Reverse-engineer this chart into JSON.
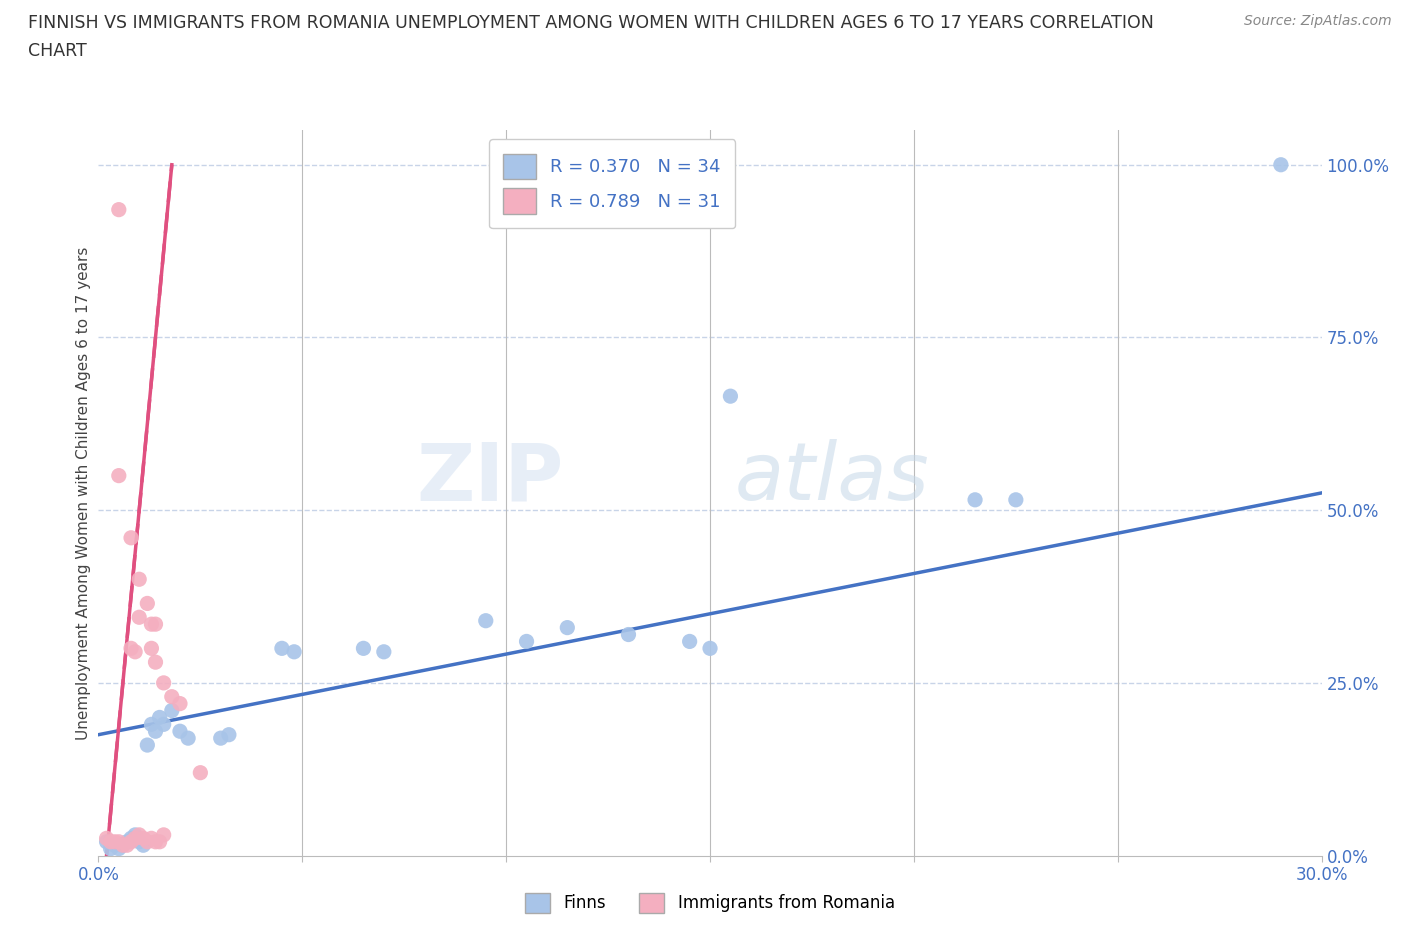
{
  "title_line1": "FINNISH VS IMMIGRANTS FROM ROMANIA UNEMPLOYMENT AMONG WOMEN WITH CHILDREN AGES 6 TO 17 YEARS CORRELATION",
  "title_line2": "CHART",
  "source": "Source: ZipAtlas.com",
  "ylabel": "Unemployment Among Women with Children Ages 6 to 17 years",
  "xlim": [
    0.0,
    0.3
  ],
  "ylim": [
    0.0,
    1.05
  ],
  "xticks": [
    0.0,
    0.05,
    0.1,
    0.15,
    0.2,
    0.25,
    0.3
  ],
  "xticklabels": [
    "0.0%",
    "",
    "",
    "",
    "",
    "",
    "30.0%"
  ],
  "yticks": [
    0.0,
    0.25,
    0.5,
    0.75,
    1.0
  ],
  "yticklabels": [
    "0.0%",
    "25.0%",
    "50.0%",
    "75.0%",
    "100.0%"
  ],
  "watermark_zip": "ZIP",
  "watermark_atlas": "atlas",
  "legend_r_finns": "R = 0.370",
  "legend_n_finns": "N = 34",
  "legend_r_romania": "R = 0.789",
  "legend_n_romania": "N = 31",
  "finns_color": "#a8c4e8",
  "romania_color": "#f4afc0",
  "finns_line_color": "#4472c4",
  "romania_line_color": "#e05080",
  "tick_color": "#4472c4",
  "grid_color": "#c8d4e8",
  "finns_scatter": [
    [
      0.002,
      0.02
    ],
    [
      0.003,
      0.01
    ],
    [
      0.004,
      0.015
    ],
    [
      0.005,
      0.01
    ],
    [
      0.006,
      0.015
    ],
    [
      0.007,
      0.02
    ],
    [
      0.008,
      0.025
    ],
    [
      0.009,
      0.03
    ],
    [
      0.01,
      0.02
    ],
    [
      0.011,
      0.015
    ],
    [
      0.012,
      0.16
    ],
    [
      0.013,
      0.19
    ],
    [
      0.014,
      0.18
    ],
    [
      0.015,
      0.2
    ],
    [
      0.016,
      0.19
    ],
    [
      0.018,
      0.21
    ],
    [
      0.02,
      0.18
    ],
    [
      0.022,
      0.17
    ],
    [
      0.03,
      0.17
    ],
    [
      0.032,
      0.175
    ],
    [
      0.045,
      0.3
    ],
    [
      0.048,
      0.295
    ],
    [
      0.065,
      0.3
    ],
    [
      0.07,
      0.295
    ],
    [
      0.095,
      0.34
    ],
    [
      0.105,
      0.31
    ],
    [
      0.115,
      0.33
    ],
    [
      0.13,
      0.32
    ],
    [
      0.145,
      0.31
    ],
    [
      0.15,
      0.3
    ],
    [
      0.155,
      0.665
    ],
    [
      0.215,
      0.515
    ],
    [
      0.225,
      0.515
    ],
    [
      0.29,
      1.0
    ]
  ],
  "romania_scatter": [
    [
      0.002,
      0.025
    ],
    [
      0.003,
      0.02
    ],
    [
      0.004,
      0.02
    ],
    [
      0.005,
      0.02
    ],
    [
      0.006,
      0.015
    ],
    [
      0.007,
      0.015
    ],
    [
      0.008,
      0.02
    ],
    [
      0.009,
      0.025
    ],
    [
      0.01,
      0.03
    ],
    [
      0.011,
      0.025
    ],
    [
      0.012,
      0.02
    ],
    [
      0.013,
      0.025
    ],
    [
      0.014,
      0.02
    ],
    [
      0.015,
      0.02
    ],
    [
      0.016,
      0.03
    ],
    [
      0.008,
      0.3
    ],
    [
      0.009,
      0.295
    ],
    [
      0.01,
      0.345
    ],
    [
      0.013,
      0.335
    ],
    [
      0.014,
      0.335
    ],
    [
      0.005,
      0.55
    ],
    [
      0.008,
      0.46
    ],
    [
      0.01,
      0.4
    ],
    [
      0.012,
      0.365
    ],
    [
      0.013,
      0.3
    ],
    [
      0.014,
      0.28
    ],
    [
      0.016,
      0.25
    ],
    [
      0.018,
      0.23
    ],
    [
      0.02,
      0.22
    ],
    [
      0.005,
      0.935
    ],
    [
      0.025,
      0.12
    ]
  ],
  "finns_line": [
    [
      0.0,
      0.175
    ],
    [
      0.3,
      0.525
    ]
  ],
  "romania_line": [
    [
      0.002,
      0.0
    ],
    [
      0.018,
      1.0
    ]
  ]
}
